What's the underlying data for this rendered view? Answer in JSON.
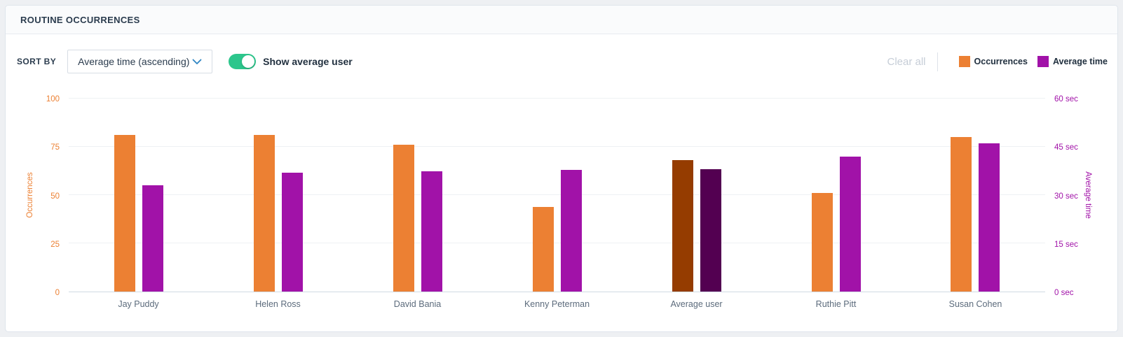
{
  "header": {
    "title": "ROUTINE OCCURRENCES"
  },
  "controls": {
    "sort_by_label": "SORT BY",
    "sort_dropdown_value": "Average time (ascending)",
    "toggle_label": "Show average user",
    "toggle_state": "on",
    "clear_all_label": "Clear all",
    "legend": [
      {
        "label": "Occurrences",
        "color": "#EC8033"
      },
      {
        "label": "Average time",
        "color": "#A112A8"
      }
    ]
  },
  "chart_data": {
    "type": "bar",
    "title": "ROUTINE OCCURRENCES",
    "categories": [
      "Jay Puddy",
      "Helen Ross",
      "David Bania",
      "Kenny Peterman",
      "Average user",
      "Ruthie Pitt",
      "Susan Cohen"
    ],
    "series": [
      {
        "name": "Occurrences",
        "axis": "left",
        "color": "#EC8033",
        "highlight_color": "#953C00",
        "values": [
          81,
          81,
          76,
          44,
          68,
          51,
          80
        ]
      },
      {
        "name": "Average time",
        "axis": "right",
        "unit": "sec",
        "color": "#A112A8",
        "highlight_color": "#530051",
        "values": [
          33,
          37,
          37.5,
          37.8,
          38,
          42,
          46
        ]
      }
    ],
    "highlight_category": "Average user",
    "left_axis": {
      "label": "Occurrences",
      "range": [
        0,
        100
      ],
      "ticks": [
        0,
        25,
        50,
        75,
        100
      ],
      "tick_suffix": "",
      "color": "#EC8033"
    },
    "right_axis": {
      "label": "Average time",
      "range": [
        0,
        60
      ],
      "ticks": [
        0,
        15,
        30,
        45,
        60
      ],
      "tick_suffix": " sec",
      "color": "#A112A8"
    },
    "grid": true,
    "legend_position": "top-right"
  }
}
